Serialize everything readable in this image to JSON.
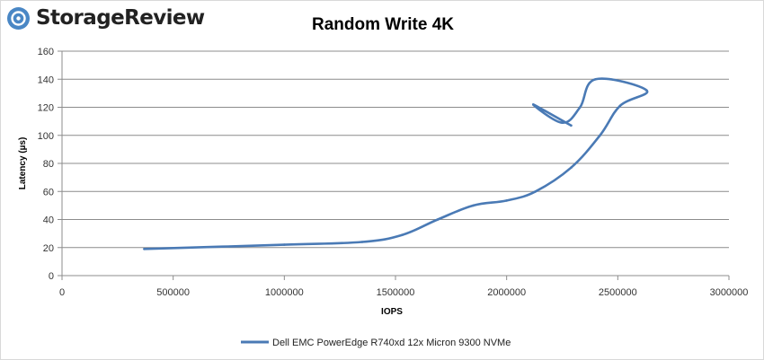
{
  "brand": {
    "logo_text": "StorageReview",
    "logo_icon": "storage-drive-icon",
    "logo_color": "#4a87c5"
  },
  "chart_data": {
    "type": "line",
    "title": "Random Write 4K",
    "xlabel": "IOPS",
    "ylabel": "Latency (µs)",
    "xlim": [
      0,
      3000000
    ],
    "ylim": [
      0,
      160
    ],
    "x_ticks": [
      0,
      500000,
      1000000,
      1500000,
      2000000,
      2500000,
      3000000
    ],
    "y_ticks": [
      0,
      20,
      40,
      60,
      80,
      100,
      120,
      140,
      160
    ],
    "x_tick_labels": [
      "0",
      "500000",
      "1000000",
      "1500000",
      "2000000",
      "2500000",
      "3000000"
    ],
    "y_tick_labels": [
      "0",
      "20",
      "40",
      "60",
      "80",
      "100",
      "120",
      "140",
      "160"
    ],
    "grid": true,
    "legend_position": "bottom",
    "series": [
      {
        "name": "Dell EMC PowerEdge R740xd 12x Micron 9300 NVMe",
        "color": "#4a7ab5",
        "points": [
          [
            370000,
            19
          ],
          [
            1000000,
            22
          ],
          [
            1350000,
            24
          ],
          [
            1530000,
            29
          ],
          [
            1690000,
            40
          ],
          [
            1850000,
            50
          ],
          [
            2000000,
            53.5
          ],
          [
            2130000,
            60
          ],
          [
            2290000,
            77
          ],
          [
            2420000,
            100
          ],
          [
            2510000,
            121
          ],
          [
            2630000,
            132
          ],
          [
            2400000,
            140
          ],
          [
            2330000,
            120
          ],
          [
            2250000,
            109
          ],
          [
            2120000,
            122
          ],
          [
            2290000,
            107
          ]
        ]
      }
    ]
  }
}
